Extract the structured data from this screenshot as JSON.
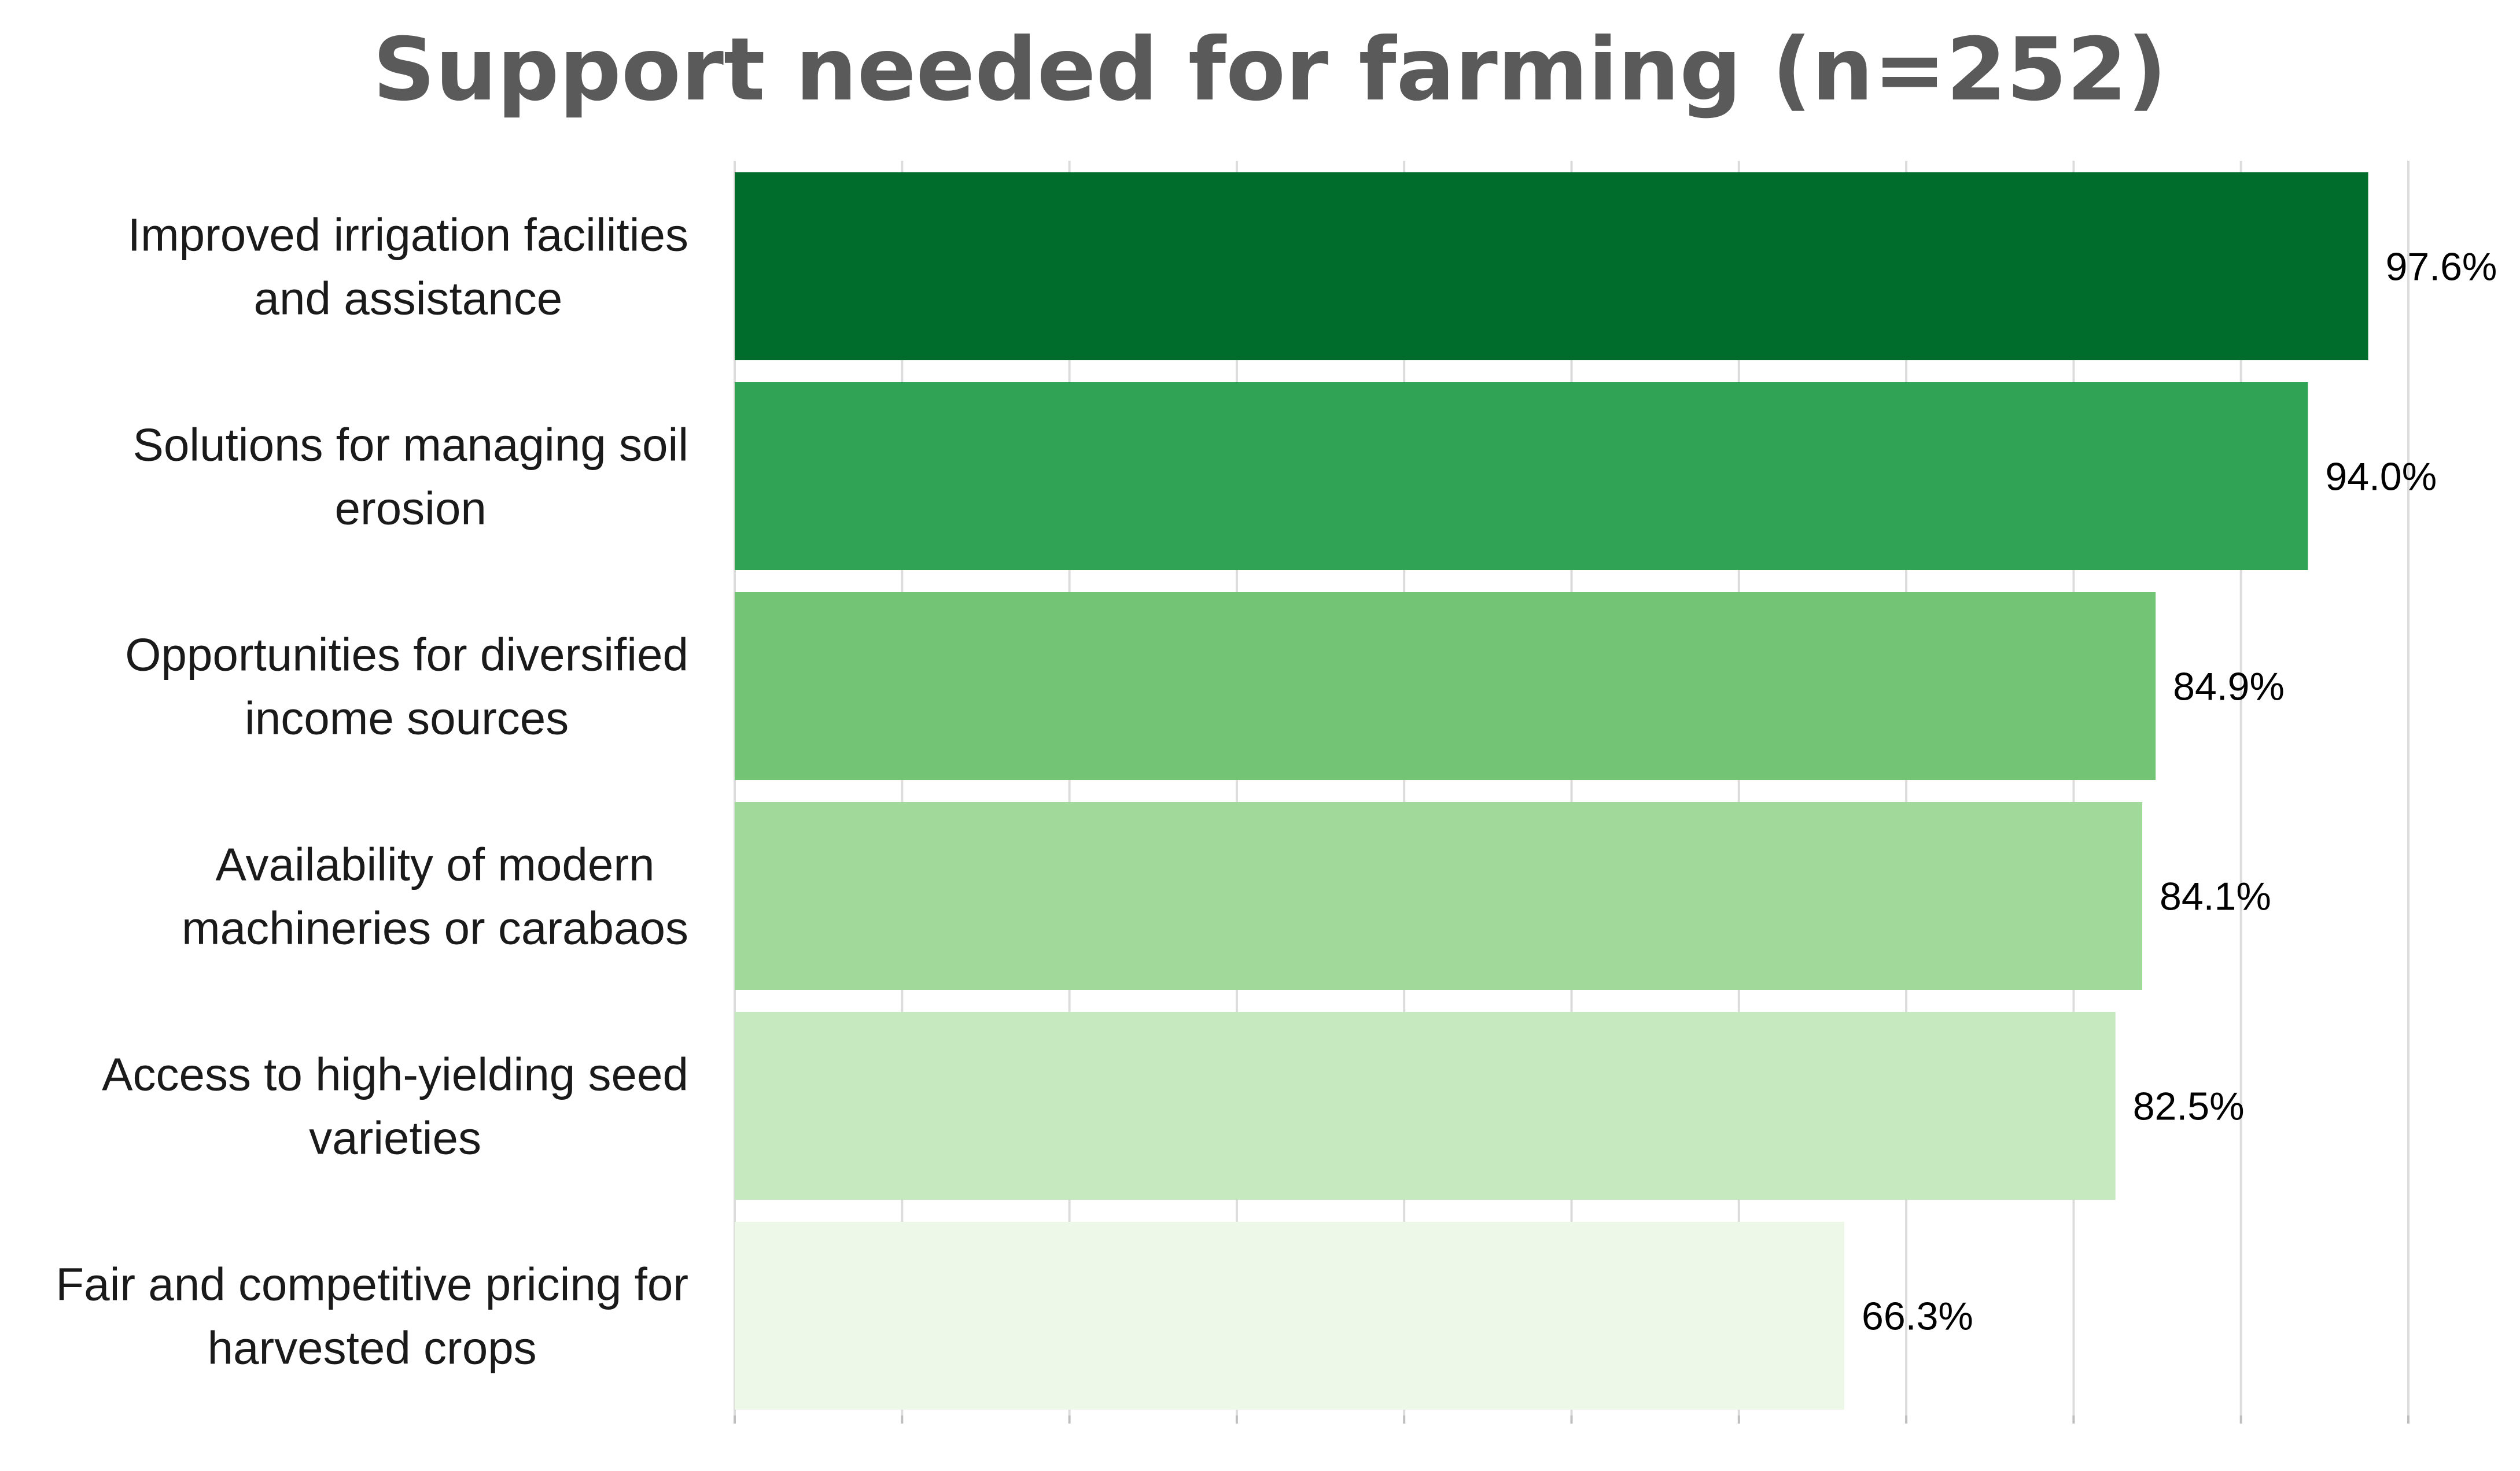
{
  "chart_data": {
    "type": "bar",
    "orientation": "horizontal",
    "title": "Support needed for farming (n=252)",
    "categories": [
      [
        "Improved irrigation facilities",
        "and assistance"
      ],
      [
        "Solutions for managing soil",
        "erosion"
      ],
      [
        "Opportunities for diversified",
        "income sources"
      ],
      [
        "Availability of modern",
        "machineries or carabaos"
      ],
      [
        "Access to high-yielding seed",
        "varieties"
      ],
      [
        "Fair and competitive pricing for",
        "harvested crops"
      ]
    ],
    "values": [
      97.6,
      94.0,
      84.9,
      84.1,
      82.5,
      66.3
    ],
    "value_labels": [
      "97.6%",
      "94.0%",
      "84.9%",
      "84.1%",
      "82.5%",
      "66.3%"
    ],
    "bar_colors": [
      "#006d2c",
      "#31a354",
      "#74c476",
      "#a1d99b",
      "#c7e9c0",
      "#edf8e9"
    ],
    "xlim": [
      0,
      100
    ],
    "x_gridlines": [
      0,
      10,
      20,
      30,
      40,
      50,
      60,
      70,
      80,
      90,
      100
    ],
    "grid": true,
    "xlabel": "",
    "ylabel": ""
  }
}
